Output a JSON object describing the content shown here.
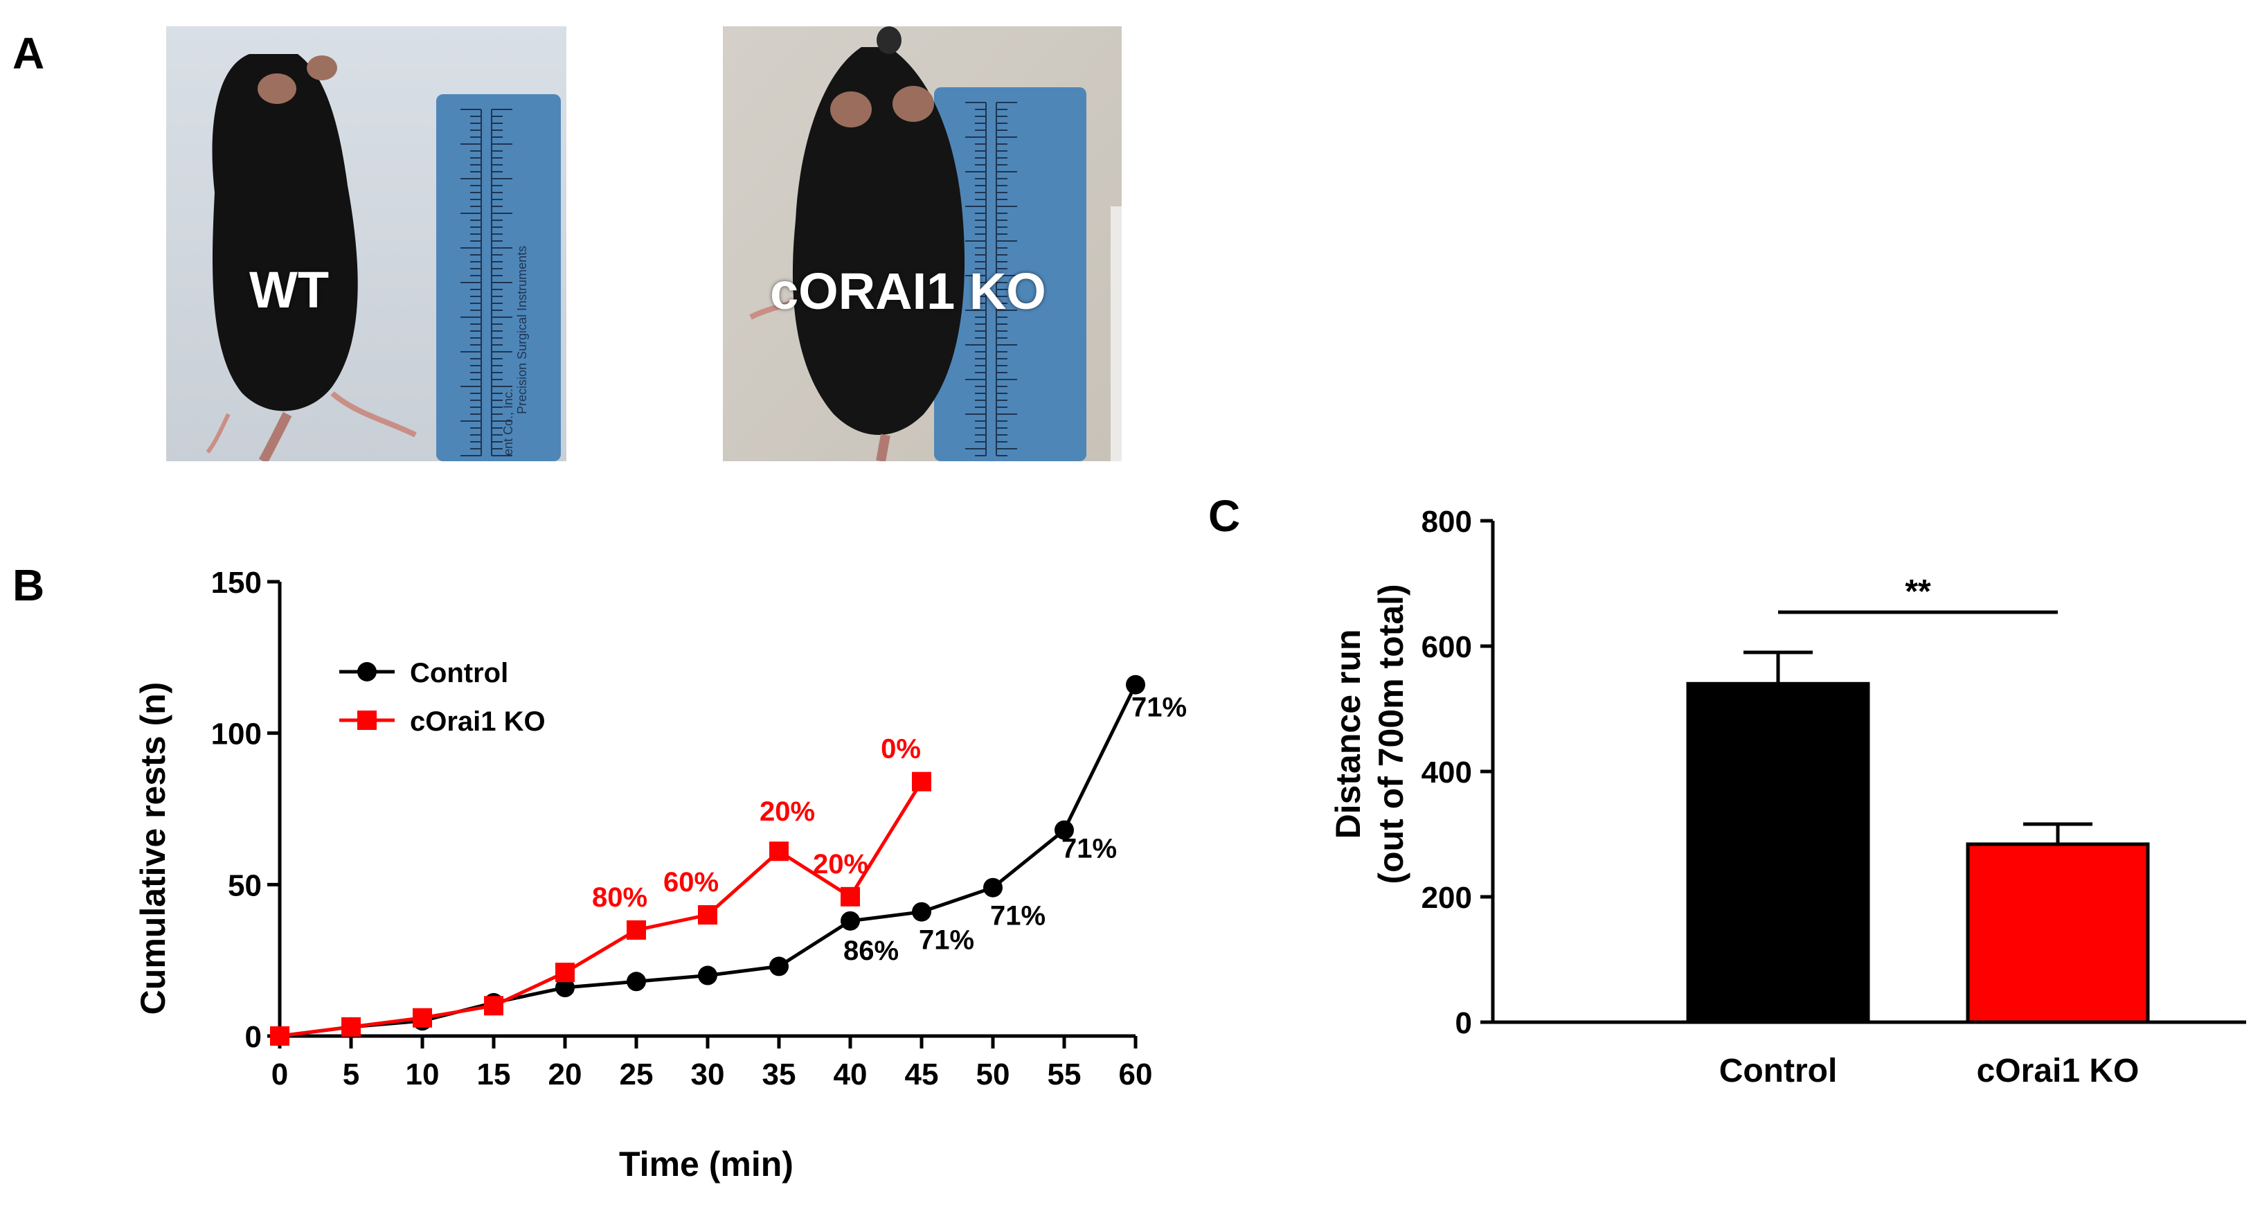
{
  "panel_a": {
    "letter": "A",
    "photos": [
      {
        "label": "WT"
      },
      {
        "label": "cORAI1 KO"
      }
    ],
    "ruler_text": [
      "Precision Surgical Instruments",
      "ent Co., Inc."
    ]
  },
  "chart_data": [
    {
      "panel": "B",
      "type": "line",
      "title": "",
      "xlabel": "Time (min)",
      "ylabel": "Cumulative rests (n)",
      "xlim": [
        0,
        60
      ],
      "ylim": [
        0,
        150
      ],
      "xticks": [
        0,
        5,
        10,
        15,
        20,
        25,
        30,
        35,
        40,
        45,
        50,
        55,
        60
      ],
      "yticks": [
        0,
        50,
        100,
        150
      ],
      "legend": "upper-left",
      "series": [
        {
          "name": "Control",
          "color": "#000000",
          "marker": "circle",
          "x": [
            0,
            5,
            10,
            15,
            20,
            25,
            30,
            35,
            40,
            45,
            50,
            55,
            60
          ],
          "y": [
            0,
            3,
            5,
            11,
            16,
            18,
            20,
            23,
            38,
            41,
            49,
            68,
            116
          ],
          "annotations": [
            {
              "x": 40,
              "y": 38,
              "text": "86%"
            },
            {
              "x": 45,
              "y": 41,
              "text": "71%"
            },
            {
              "x": 50,
              "y": 49,
              "text": "71%"
            },
            {
              "x": 55,
              "y": 68,
              "text": "71%"
            },
            {
              "x": 60,
              "y": 116,
              "text": "71%"
            }
          ]
        },
        {
          "name": "cOrai1 KO",
          "color": "#ff0000",
          "marker": "square",
          "x": [
            0,
            5,
            10,
            15,
            20,
            25,
            30,
            35,
            40,
            45
          ],
          "y": [
            0,
            3,
            6,
            10,
            21,
            35,
            40,
            61,
            46,
            84
          ],
          "annotations": [
            {
              "x": 25,
              "y": 35,
              "text": "80%"
            },
            {
              "x": 30,
              "y": 40,
              "text": "60%"
            },
            {
              "x": 35,
              "y": 61,
              "text": "20%"
            },
            {
              "x": 40,
              "y": 46,
              "text": "20%"
            },
            {
              "x": 45,
              "y": 84,
              "text": "0%"
            }
          ]
        }
      ]
    },
    {
      "panel": "C",
      "type": "bar",
      "title": "",
      "xlabel": "",
      "ylabel": "Distance run",
      "ylabel2": "(out of 700m total)",
      "ylim": [
        0,
        800
      ],
      "yticks": [
        0,
        200,
        400,
        600,
        800
      ],
      "categories": [
        "Control",
        "cOrai1 KO"
      ],
      "values": [
        540,
        284
      ],
      "errors": [
        50,
        32
      ],
      "colors": [
        "#000000",
        "#ff0000"
      ],
      "significance": "**"
    }
  ]
}
